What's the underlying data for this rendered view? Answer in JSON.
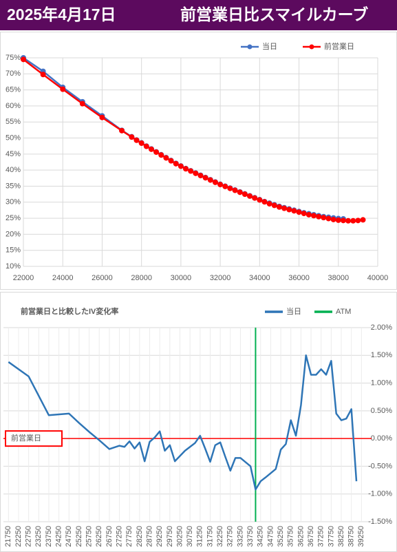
{
  "header": {
    "date": "2025年4月17日",
    "title": "前営業日比スマイルカーブ"
  },
  "chart_data": [
    {
      "type": "line",
      "legend": "top",
      "grid": true,
      "x": [
        22000,
        23000,
        24000,
        25000,
        26000,
        27000,
        27500,
        27750,
        28000,
        28250,
        28500,
        28750,
        29000,
        29250,
        29500,
        29750,
        30000,
        30250,
        30500,
        30750,
        31000,
        31250,
        31500,
        31750,
        32000,
        32250,
        32500,
        32750,
        33000,
        33250,
        33500,
        33750,
        34000,
        34250,
        34500,
        34750,
        35000,
        35250,
        35500,
        35750,
        36000,
        36250,
        36500,
        36750,
        37000,
        37250,
        37500,
        37750,
        38000,
        38250,
        38500,
        38750,
        39000,
        39250
      ],
      "series": [
        {
          "name": "当日",
          "color": "#4472c4",
          "values": [
            75.0,
            70.8,
            65.8,
            61.3,
            56.9,
            52.4,
            50.4,
            49.4,
            48.5,
            47.5,
            46.6,
            45.7,
            44.8,
            43.9,
            43.0,
            42.1,
            41.3,
            40.5,
            39.8,
            39.1,
            38.4,
            37.7,
            37.0,
            36.3,
            35.6,
            35.0,
            34.4,
            33.8,
            33.2,
            32.6,
            32.0,
            31.4,
            30.8,
            30.2,
            29.7,
            29.2,
            28.7,
            28.3,
            27.9,
            27.5,
            27.1,
            26.7,
            26.4,
            26.1,
            25.8,
            25.5,
            25.3,
            25.1,
            24.9,
            24.8,
            null,
            null,
            null,
            null
          ]
        },
        {
          "name": "前営業日",
          "color": "#ff0000",
          "values": [
            74.5,
            69.8,
            65.2,
            60.7,
            56.4,
            52.3,
            50.3,
            49.3,
            48.4,
            47.4,
            46.5,
            45.6,
            44.7,
            43.8,
            42.9,
            42.0,
            41.2,
            40.4,
            39.7,
            39.0,
            38.3,
            37.6,
            36.9,
            36.2,
            35.5,
            34.9,
            34.3,
            33.7,
            33.1,
            32.5,
            31.9,
            31.3,
            30.7,
            30.1,
            29.5,
            29.0,
            28.5,
            28.1,
            27.7,
            27.3,
            26.9,
            26.5,
            26.1,
            25.8,
            25.5,
            25.2,
            24.9,
            24.6,
            24.4,
            24.3,
            24.2,
            24.2,
            24.3,
            24.5
          ]
        }
      ],
      "xlim": [
        22000,
        40000
      ],
      "xticks": [
        22000,
        24000,
        26000,
        28000,
        30000,
        32000,
        34000,
        36000,
        38000,
        40000
      ],
      "ylim": [
        10,
        75
      ],
      "yticks": [
        {
          "value": 10,
          "label": "10%"
        },
        {
          "value": 15,
          "label": "15%"
        },
        {
          "value": 20,
          "label": "20%"
        },
        {
          "value": 25,
          "label": "25%"
        },
        {
          "value": 30,
          "label": "30%"
        },
        {
          "value": 35,
          "label": "35%"
        },
        {
          "value": 40,
          "label": "40%"
        },
        {
          "value": 45,
          "label": "45%"
        },
        {
          "value": 50,
          "label": "50%"
        },
        {
          "value": 55,
          "label": "55%"
        },
        {
          "value": 60,
          "label": "60%"
        },
        {
          "value": 65,
          "label": "65%"
        },
        {
          "value": 70,
          "label": "70%"
        },
        {
          "value": 75,
          "label": "75%"
        }
      ],
      "y_axis_side": "left",
      "markers": true
    },
    {
      "type": "line",
      "title": "前営業日と比較したIV変化率",
      "legend": "top",
      "grid": true,
      "x": [
        21750,
        22750,
        23750,
        24750,
        25250,
        25750,
        26250,
        26750,
        27250,
        27500,
        27750,
        28000,
        28250,
        28500,
        28750,
        29000,
        29250,
        29500,
        29750,
        30000,
        30500,
        31000,
        31250,
        31500,
        31750,
        32000,
        32250,
        32500,
        32750,
        33000,
        33250,
        33750,
        34000,
        34250,
        34500,
        35000,
        35250,
        35500,
        35750,
        36000,
        36250,
        36500,
        36750,
        37000,
        37250,
        37500,
        37750,
        38000,
        38250,
        38500,
        38750,
        39000
      ],
      "series": [
        {
          "name": "当日",
          "color": "#2e75b6",
          "values": [
            1.38,
            1.12,
            0.42,
            0.45,
            0.28,
            0.12,
            -0.03,
            -0.19,
            -0.13,
            -0.15,
            -0.05,
            -0.18,
            -0.07,
            -0.41,
            -0.06,
            0.02,
            0.13,
            -0.22,
            -0.12,
            -0.41,
            -0.22,
            -0.08,
            0.05,
            -0.18,
            -0.42,
            -0.12,
            -0.07,
            -0.33,
            -0.58,
            -0.35,
            -0.35,
            -0.5,
            -0.92,
            -0.77,
            -0.7,
            -0.55,
            -0.2,
            -0.1,
            0.33,
            0.05,
            0.6,
            1.5,
            1.15,
            1.15,
            1.25,
            1.15,
            1.4,
            0.45,
            0.33,
            0.36,
            0.53,
            -0.77
          ]
        }
      ],
      "atm": {
        "name": "ATM",
        "value": 34000,
        "color": "#00b050"
      },
      "reference_line": {
        "label": "前営業日",
        "value": 0,
        "color": "#ff0000"
      },
      "xlim": [
        21500,
        39750
      ],
      "xticks": [
        21750,
        22250,
        22750,
        23250,
        23750,
        24250,
        24750,
        25250,
        25750,
        26250,
        26750,
        27250,
        27750,
        28250,
        28750,
        29250,
        29750,
        30250,
        30750,
        31250,
        31750,
        32250,
        32750,
        33250,
        33750,
        34250,
        34750,
        35250,
        35750,
        36250,
        36750,
        37250,
        37750,
        38250,
        38750,
        39250
      ],
      "x_label_rotation": -90,
      "ylim": [
        -1.5,
        2.0
      ],
      "yticks": [
        {
          "value": -1.5,
          "label": "-1.50%"
        },
        {
          "value": -1.0,
          "label": "-1.00%"
        },
        {
          "value": -0.5,
          "label": "-0.50%"
        },
        {
          "value": 0,
          "label": "0.00%"
        },
        {
          "value": 0.5,
          "label": "0.50%"
        },
        {
          "value": 1.0,
          "label": "1.00%"
        },
        {
          "value": 1.5,
          "label": "1.50%"
        },
        {
          "value": 2.0,
          "label": "2.00%"
        }
      ],
      "y_axis_side": "right",
      "markers": false
    }
  ]
}
